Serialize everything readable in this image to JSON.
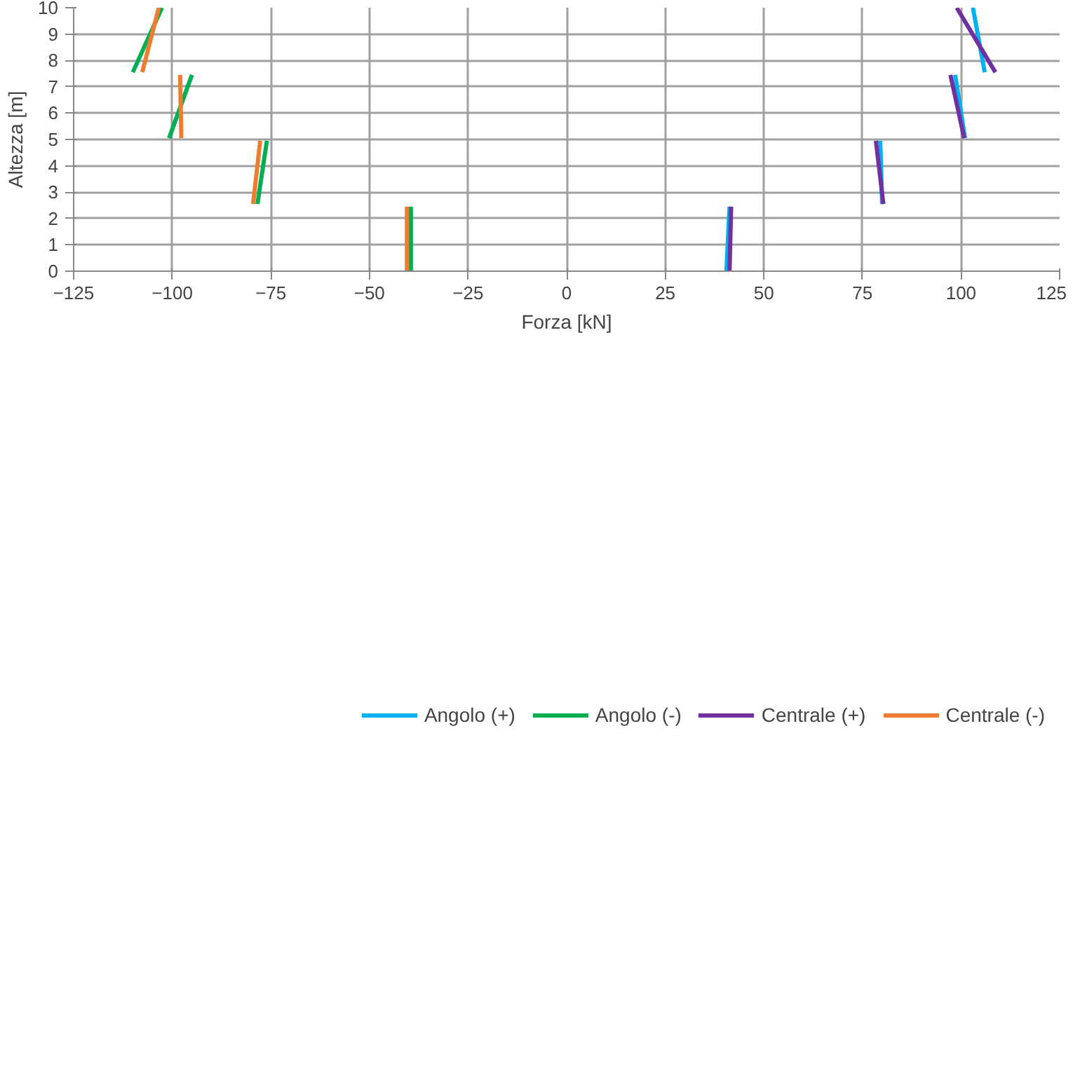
{
  "chart_data": {
    "type": "line",
    "xlabel": "Forza [kN]",
    "ylabel": "Altezza [m]",
    "xlim": [
      -125,
      125
    ],
    "ylim": [
      0,
      10
    ],
    "xticks": [
      -125,
      -100,
      -75,
      -50,
      -25,
      0,
      25,
      50,
      75,
      100,
      125
    ],
    "yticks": [
      0,
      1,
      2,
      3,
      4,
      5,
      6,
      7,
      8,
      9,
      10
    ],
    "grid": true,
    "legend": "bottom",
    "marker": "none",
    "line_style": "solid",
    "series": [
      {
        "name": "Angolo (+)",
        "color": "#00b0f0",
        "x": [
          40.5,
          41.3,
          null,
          80,
          79.5,
          null,
          101,
          98.5,
          null,
          106,
          103
        ],
        "values": [
          0,
          2.45,
          null,
          2.55,
          4.95,
          null,
          5.05,
          7.45,
          null,
          7.55,
          10
        ]
      },
      {
        "name": "Angolo (-)",
        "color": "#00b050",
        "x": [
          -39.5,
          -39.5,
          null,
          -78.4,
          -76,
          null,
          -100.8,
          -95,
          null,
          -110,
          -102.6
        ],
        "values": [
          0,
          2.45,
          null,
          2.55,
          4.95,
          null,
          5.05,
          7.45,
          null,
          7.55,
          10
        ]
      },
      {
        "name": "Centrale (+)",
        "color": "#7030a0",
        "x": [
          41.3,
          41.7,
          null,
          80.3,
          78.4,
          null,
          100.8,
          97.3,
          null,
          108.7,
          98.9
        ],
        "values": [
          0,
          2.45,
          null,
          2.55,
          4.95,
          null,
          5.05,
          7.45,
          null,
          7.55,
          10
        ]
      },
      {
        "name": "Centrale (-)",
        "color": "#ed7d31",
        "x": [
          -40.5,
          -40.5,
          null,
          -79.5,
          -77.7,
          null,
          -97.7,
          -98,
          null,
          -107.6,
          -103.4
        ],
        "values": [
          0,
          2.45,
          null,
          2.55,
          4.95,
          null,
          5.05,
          7.45,
          null,
          7.55,
          10
        ]
      }
    ]
  }
}
